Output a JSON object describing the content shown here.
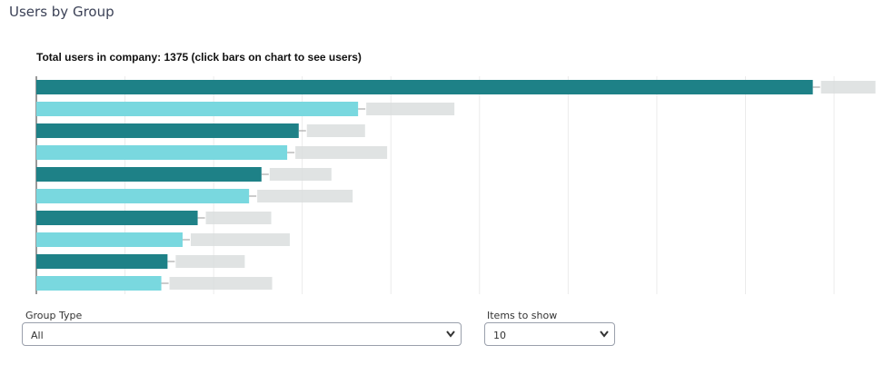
{
  "header": {
    "title": "Users by Group"
  },
  "chart_data": {
    "type": "bar",
    "orientation": "horizontal",
    "title": "Total users in company: 1375 (click bars on chart to see users)",
    "categories": [
      null,
      null,
      null,
      null,
      null,
      null,
      null,
      null,
      null,
      null
    ],
    "values": [
      8.76,
      3.63,
      2.96,
      2.83,
      2.54,
      2.4,
      1.82,
      1.65,
      1.48,
      1.41
    ],
    "colors": [
      "#1e8187",
      "#79d8df"
    ],
    "xlim": [
      0,
      9.43
    ],
    "grid": true
  },
  "controls": [
    {
      "label": "Group Type",
      "value": "All"
    },
    {
      "label": "Items to show",
      "value": "10"
    }
  ]
}
